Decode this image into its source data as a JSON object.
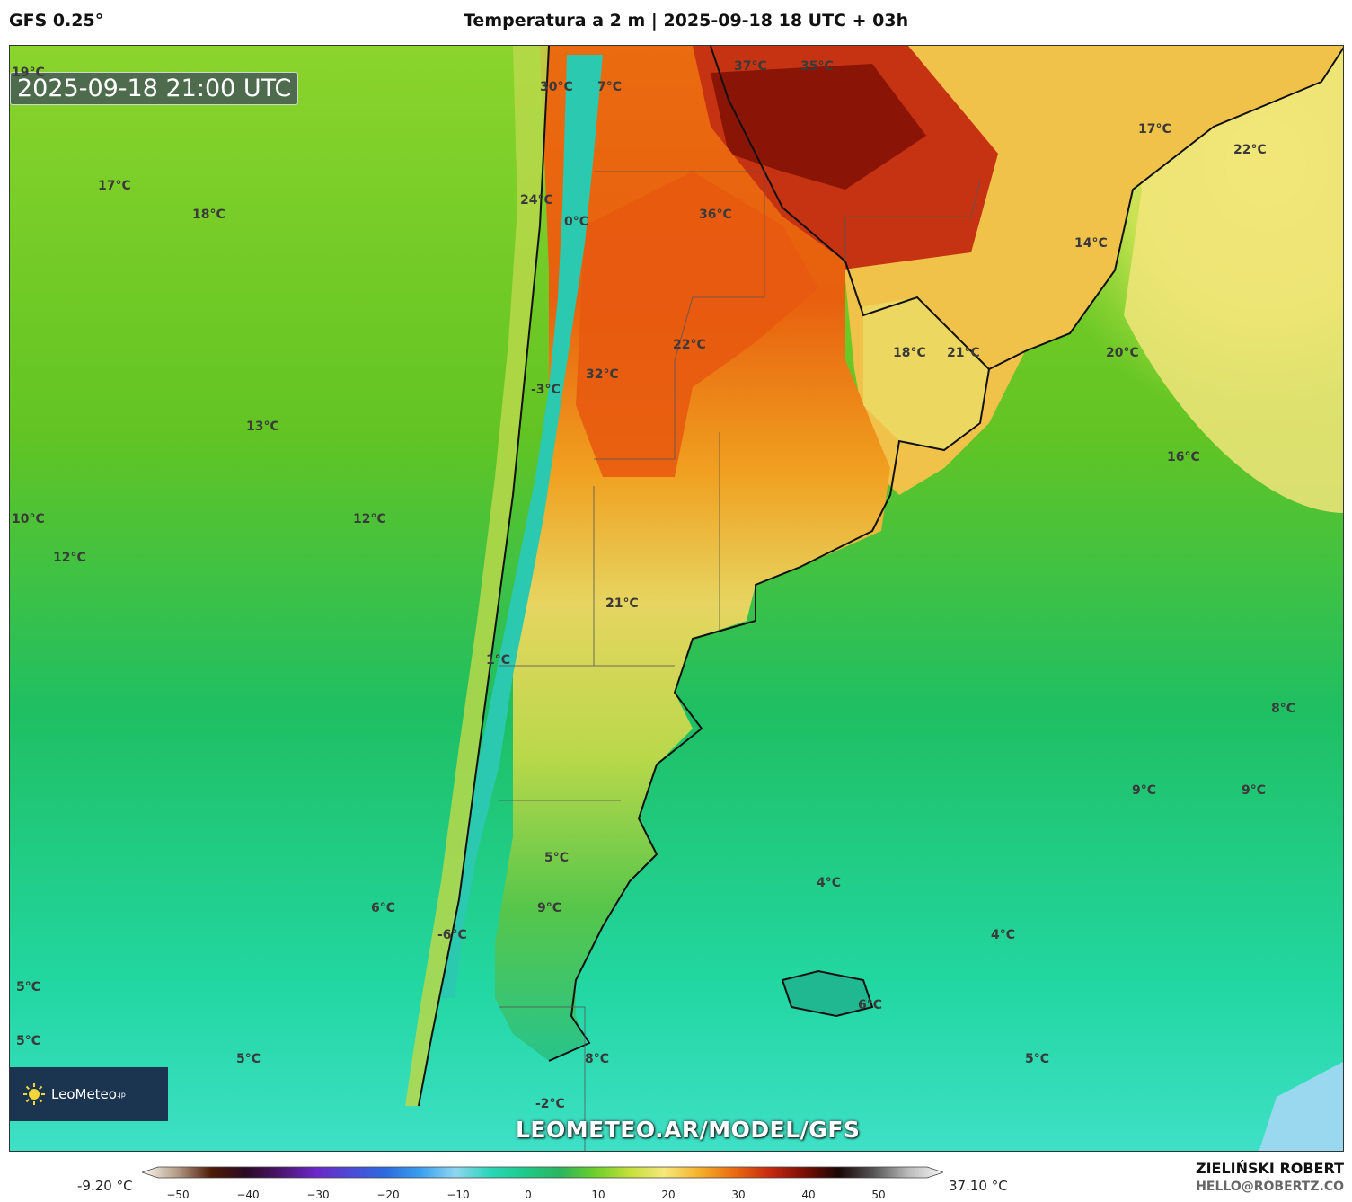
{
  "header": {
    "model": "GFS 0.25°",
    "title": "Temperatura a 2 m | 2025-09-18 18 UTC + 03h"
  },
  "map": {
    "valid_time": "2025-09-18 21:00 UTC",
    "temperature_labels": [
      {
        "text": "19°C"
      },
      {
        "text": "30°C"
      },
      {
        "text": "7°C"
      },
      {
        "text": "37°C"
      },
      {
        "text": "35°C"
      },
      {
        "text": "17°C"
      },
      {
        "text": "22°C"
      },
      {
        "text": "17°C"
      },
      {
        "text": "18°C"
      },
      {
        "text": "24°C"
      },
      {
        "text": "0°C"
      },
      {
        "text": "36°C"
      },
      {
        "text": "14°C"
      },
      {
        "text": "22°C"
      },
      {
        "text": "18°C"
      },
      {
        "text": "21°C"
      },
      {
        "text": "20°C"
      },
      {
        "text": "-3°C"
      },
      {
        "text": "32°C"
      },
      {
        "text": "13°C"
      },
      {
        "text": "16°C"
      },
      {
        "text": "10°C"
      },
      {
        "text": "12°C"
      },
      {
        "text": "12°C"
      },
      {
        "text": "21°C"
      },
      {
        "text": "1°C"
      },
      {
        "text": "8°C"
      },
      {
        "text": "9°C"
      },
      {
        "text": "9°C"
      },
      {
        "text": "5°C"
      },
      {
        "text": "4°C"
      },
      {
        "text": "6°C"
      },
      {
        "text": "9°C"
      },
      {
        "text": "-6°C"
      },
      {
        "text": "4°C"
      },
      {
        "text": "5°C"
      },
      {
        "text": "6°C"
      },
      {
        "text": "5°C"
      },
      {
        "text": "5°C"
      },
      {
        "text": "8°C"
      },
      {
        "text": "5°C"
      },
      {
        "text": "-2°C"
      }
    ],
    "logo_text": "LeoMeteo",
    "logo_suffix": ".jp",
    "watermark": "LEOMETEO.AR/MODEL/GFS"
  },
  "colorbar": {
    "min_label": "-9.20 °C",
    "max_label": "37.10 °C",
    "ticks": [
      "−50",
      "−40",
      "−30",
      "−20",
      "−10",
      "0",
      "10",
      "20",
      "30",
      "40",
      "50"
    ],
    "range": [
      -55,
      55
    ],
    "colors": [
      "#fdfbf3",
      "#b59c88",
      "#4d1a06",
      "#2a0a25",
      "#4b1570",
      "#6c28c9",
      "#4b4bd6",
      "#2c6be0",
      "#3aa0ee",
      "#8fd6f0",
      "#2ad6b8",
      "#1fc98a",
      "#2ab55e",
      "#6ccf2a",
      "#c4df3a",
      "#f6e87a",
      "#f5b02a",
      "#ea6b10",
      "#c82a10",
      "#7a0f05",
      "#1a0605",
      "#555555",
      "#bbbbbb",
      "#f5f5f5"
    ]
  },
  "footer": {
    "author": "ZIELIŃSKI ROBERT",
    "email": "HELLO@ROBERTZ.CO"
  }
}
